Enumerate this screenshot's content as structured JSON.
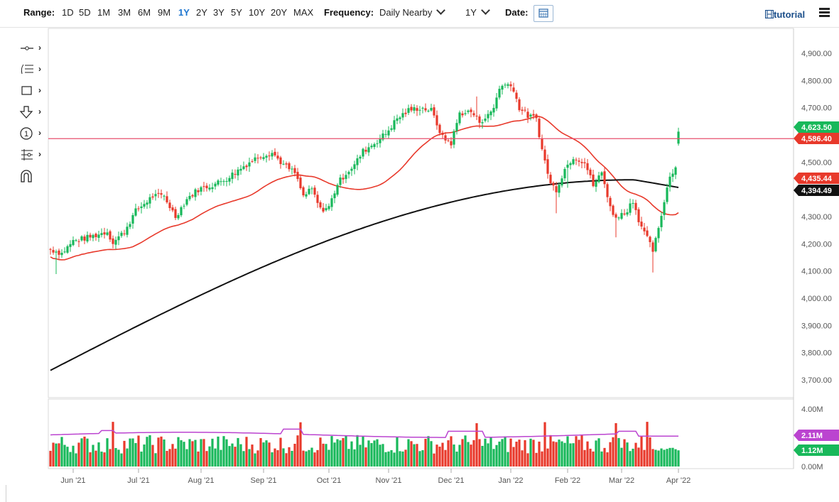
{
  "toolbar": {
    "range_label": "Range:",
    "ranges": [
      "1D",
      "5D",
      "1M",
      "3M",
      "6M",
      "9M",
      "1Y",
      "2Y",
      "3Y",
      "5Y",
      "10Y",
      "20Y",
      "MAX"
    ],
    "active_range": "1Y",
    "frequency_label": "Frequency:",
    "frequency_value": "Daily Nearby",
    "period_value": "1Y",
    "date_label": "Date:",
    "tutorial_label": "tutorial"
  },
  "drawing_tools": [
    "line-tool-icon",
    "fibonacci-tool-icon",
    "rectangle-tool-icon",
    "arrow-tool-icon",
    "counter-tool-icon",
    "measure-tool-icon",
    "magnet-tool-icon"
  ],
  "colors": {
    "up": "#18b85a",
    "down": "#e8392b",
    "ma_short": "#e8392b",
    "ma_long": "#111111",
    "hline": "#e8506e",
    "vol_avg": "#bb44d0",
    "axis_text": "#555555"
  },
  "chart_data": {
    "type": "candlestick",
    "ylim": [
      3650,
      4950
    ],
    "y_ticks": [
      "4,900.00",
      "4,800.00",
      "4,700.00",
      "4,600.00",
      "4,500.00",
      "4,400.00",
      "4,300.00",
      "4,200.00",
      "4,100.00",
      "4,000.00",
      "3,900.00",
      "3,800.00",
      "3,700.00"
    ],
    "y_tick_values": [
      4900,
      4800,
      4700,
      4600,
      4500,
      4400,
      4300,
      4200,
      4100,
      4000,
      3900,
      3800,
      3700
    ],
    "x_ticks": [
      "Jun '21",
      "Jul '21",
      "Aug '21",
      "Sep '21",
      "Oct '21",
      "Nov '21",
      "Dec '21",
      "Jan '22",
      "Feb '22",
      "Mar '22",
      "Apr '22"
    ],
    "x_tick_index": [
      8,
      31,
      53,
      75,
      98,
      119,
      141,
      162,
      182,
      201,
      221
    ],
    "bar_count": 222,
    "horizontal_line": 4586.4,
    "price_anchors": [
      [
        0,
        4180
      ],
      [
        4,
        4165
      ],
      [
        8,
        4210
      ],
      [
        14,
        4225
      ],
      [
        20,
        4245
      ],
      [
        22,
        4205
      ],
      [
        26,
        4245
      ],
      [
        30,
        4320
      ],
      [
        36,
        4375
      ],
      [
        40,
        4375
      ],
      [
        44,
        4300
      ],
      [
        48,
        4365
      ],
      [
        52,
        4400
      ],
      [
        58,
        4420
      ],
      [
        62,
        4440
      ],
      [
        66,
        4470
      ],
      [
        70,
        4500
      ],
      [
        74,
        4525
      ],
      [
        78,
        4535
      ],
      [
        82,
        4490
      ],
      [
        86,
        4460
      ],
      [
        89,
        4375
      ],
      [
        92,
        4400
      ],
      [
        95,
        4325
      ],
      [
        98,
        4335
      ],
      [
        101,
        4420
      ],
      [
        104,
        4460
      ],
      [
        107,
        4490
      ],
      [
        110,
        4540
      ],
      [
        114,
        4570
      ],
      [
        118,
        4605
      ],
      [
        122,
        4660
      ],
      [
        126,
        4690
      ],
      [
        130,
        4700
      ],
      [
        134,
        4690
      ],
      [
        138,
        4590
      ],
      [
        141,
        4570
      ],
      [
        144,
        4680
      ],
      [
        148,
        4685
      ],
      [
        151,
        4650
      ],
      [
        154,
        4670
      ],
      [
        156,
        4700
      ],
      [
        158,
        4775
      ],
      [
        162,
        4790
      ],
      [
        165,
        4700
      ],
      [
        168,
        4670
      ],
      [
        171,
        4660
      ],
      [
        173,
        4545
      ],
      [
        176,
        4420
      ],
      [
        178,
        4400
      ],
      [
        181,
        4475
      ],
      [
        184,
        4520
      ],
      [
        188,
        4500
      ],
      [
        191,
        4415
      ],
      [
        194,
        4460
      ],
      [
        196,
        4380
      ],
      [
        198,
        4300
      ],
      [
        202,
        4310
      ],
      [
        205,
        4360
      ],
      [
        207,
        4290
      ],
      [
        209,
        4240
      ],
      [
        212,
        4175
      ],
      [
        214,
        4250
      ],
      [
        216,
        4360
      ],
      [
        218,
        4450
      ],
      [
        221,
        4500
      ],
      [
        223,
        4510
      ],
      [
        226,
        4545
      ],
      [
        228,
        4605
      ]
    ],
    "last_price": "4,623.50",
    "hline_label": "4,586.40",
    "ma_short_label": "4,435.44",
    "ma_long_label": "4,394.49",
    "volume": {
      "ylim": [
        0,
        4.0
      ],
      "ticks": [
        "4.00M",
        "0.00M"
      ],
      "avg_label": "2.11M",
      "last_label": "1.12M"
    }
  }
}
